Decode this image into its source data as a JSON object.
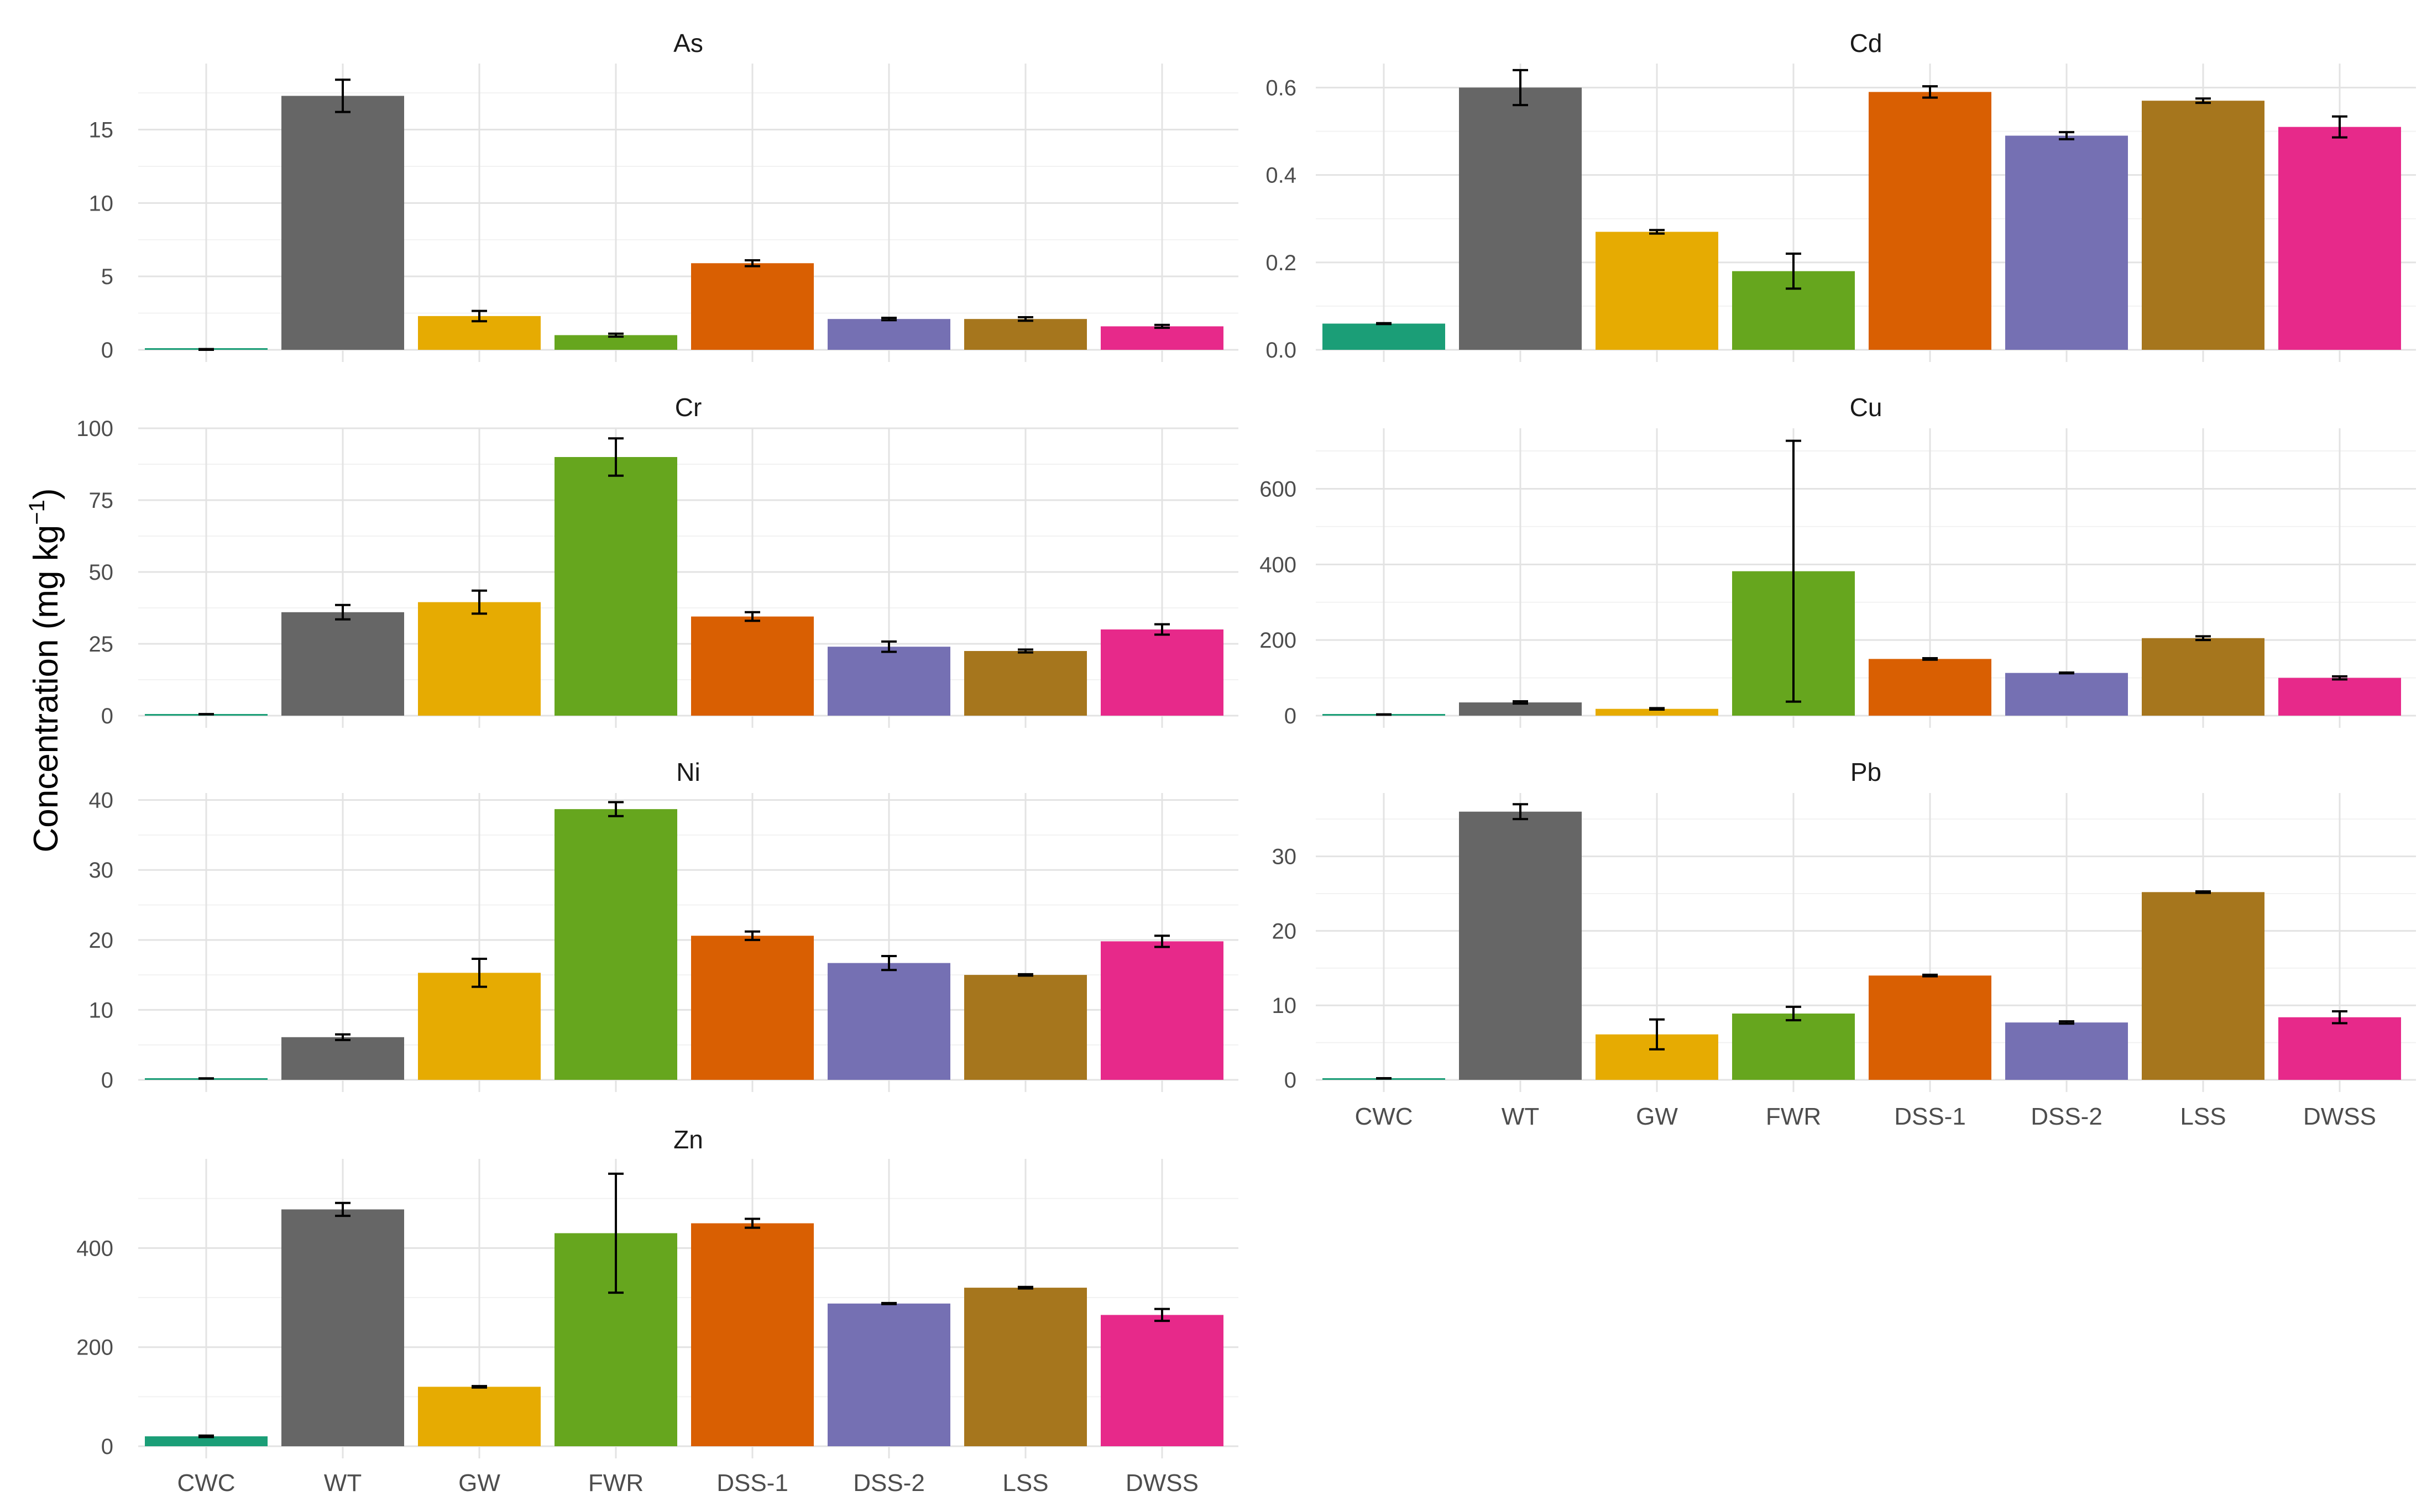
{
  "chart_data": {
    "type": "bar",
    "layout": "facet-grid",
    "ylabel": "Concentration",
    "ylabel_unit": {
      "base": "(mg kg",
      "sup": "−1",
      "close": ")"
    },
    "categories": [
      "CWC",
      "WT",
      "GW",
      "FWR",
      "DSS-1",
      "DSS-2",
      "LSS",
      "DWSS"
    ],
    "colors": {
      "CWC": "#1b9e77",
      "WT": "#666666",
      "GW": "#e6ab02",
      "FWR": "#66a61e",
      "DSS-1": "#d95f02",
      "DSS-2": "#7570b3",
      "LSS": "#a6761d",
      "DWSS": "#e7298a"
    },
    "panels": [
      {
        "element": "As",
        "ylim": [
          0,
          19.5
        ],
        "ticks": [
          0,
          5,
          10,
          15
        ],
        "values": [
          0,
          17.3,
          2.3,
          1.0,
          5.9,
          2.1,
          2.1,
          1.6
        ],
        "errors": [
          0.05,
          1.1,
          0.35,
          0.1,
          0.2,
          0.08,
          0.12,
          0.1
        ],
        "show_x_labels": false
      },
      {
        "element": "Cd",
        "ylim": [
          0,
          0.655
        ],
        "ticks": [
          0.0,
          0.2,
          0.4,
          0.6
        ],
        "values": [
          0.06,
          0.6,
          0.27,
          0.18,
          0.59,
          0.49,
          0.57,
          0.51
        ],
        "errors": [
          0.001,
          0.04,
          0.004,
          0.04,
          0.013,
          0.008,
          0.005,
          0.024
        ],
        "show_x_labels": false
      },
      {
        "element": "Cr",
        "ylim": [
          0,
          100
        ],
        "ticks": [
          0,
          25,
          50,
          75,
          100
        ],
        "values": [
          0.5,
          36,
          39.5,
          90,
          34.5,
          24,
          22.5,
          30
        ],
        "errors": [
          0.05,
          2.5,
          4,
          6.5,
          1.5,
          1.8,
          0.5,
          1.8
        ],
        "show_x_labels": false
      },
      {
        "element": "Cu",
        "ylim": [
          0,
          760
        ],
        "ticks": [
          0,
          200,
          400,
          600
        ],
        "values": [
          3,
          35,
          18,
          382,
          150,
          113,
          205,
          100
        ],
        "errors": [
          0.5,
          3,
          2,
          345,
          2,
          1,
          5,
          4
        ],
        "show_x_labels": false
      },
      {
        "element": "Ni",
        "ylim": [
          0,
          41
        ],
        "ticks": [
          0,
          10,
          20,
          30,
          40
        ],
        "values": [
          0.2,
          6.1,
          15.3,
          38.7,
          20.6,
          16.7,
          15,
          19.8
        ],
        "errors": [
          0.02,
          0.4,
          2,
          1,
          0.6,
          1,
          0.1,
          0.8
        ],
        "show_x_labels": false
      },
      {
        "element": "Pb",
        "ylim": [
          0,
          38.5
        ],
        "ticks": [
          0,
          10,
          20,
          30
        ],
        "values": [
          0.2,
          36,
          6.1,
          8.9,
          14,
          7.7,
          25.2,
          8.4
        ],
        "errors": [
          0.02,
          1,
          2,
          0.9,
          0.1,
          0.15,
          0.1,
          0.8
        ],
        "show_x_labels": true
      },
      {
        "element": "Zn",
        "ylim": [
          0,
          580
        ],
        "ticks": [
          0,
          200,
          400
        ],
        "values": [
          20,
          478,
          120,
          430,
          450,
          288,
          320,
          265
        ],
        "errors": [
          1.5,
          13,
          1.5,
          120,
          9,
          1,
          1.5,
          12
        ],
        "show_x_labels": true
      }
    ]
  }
}
